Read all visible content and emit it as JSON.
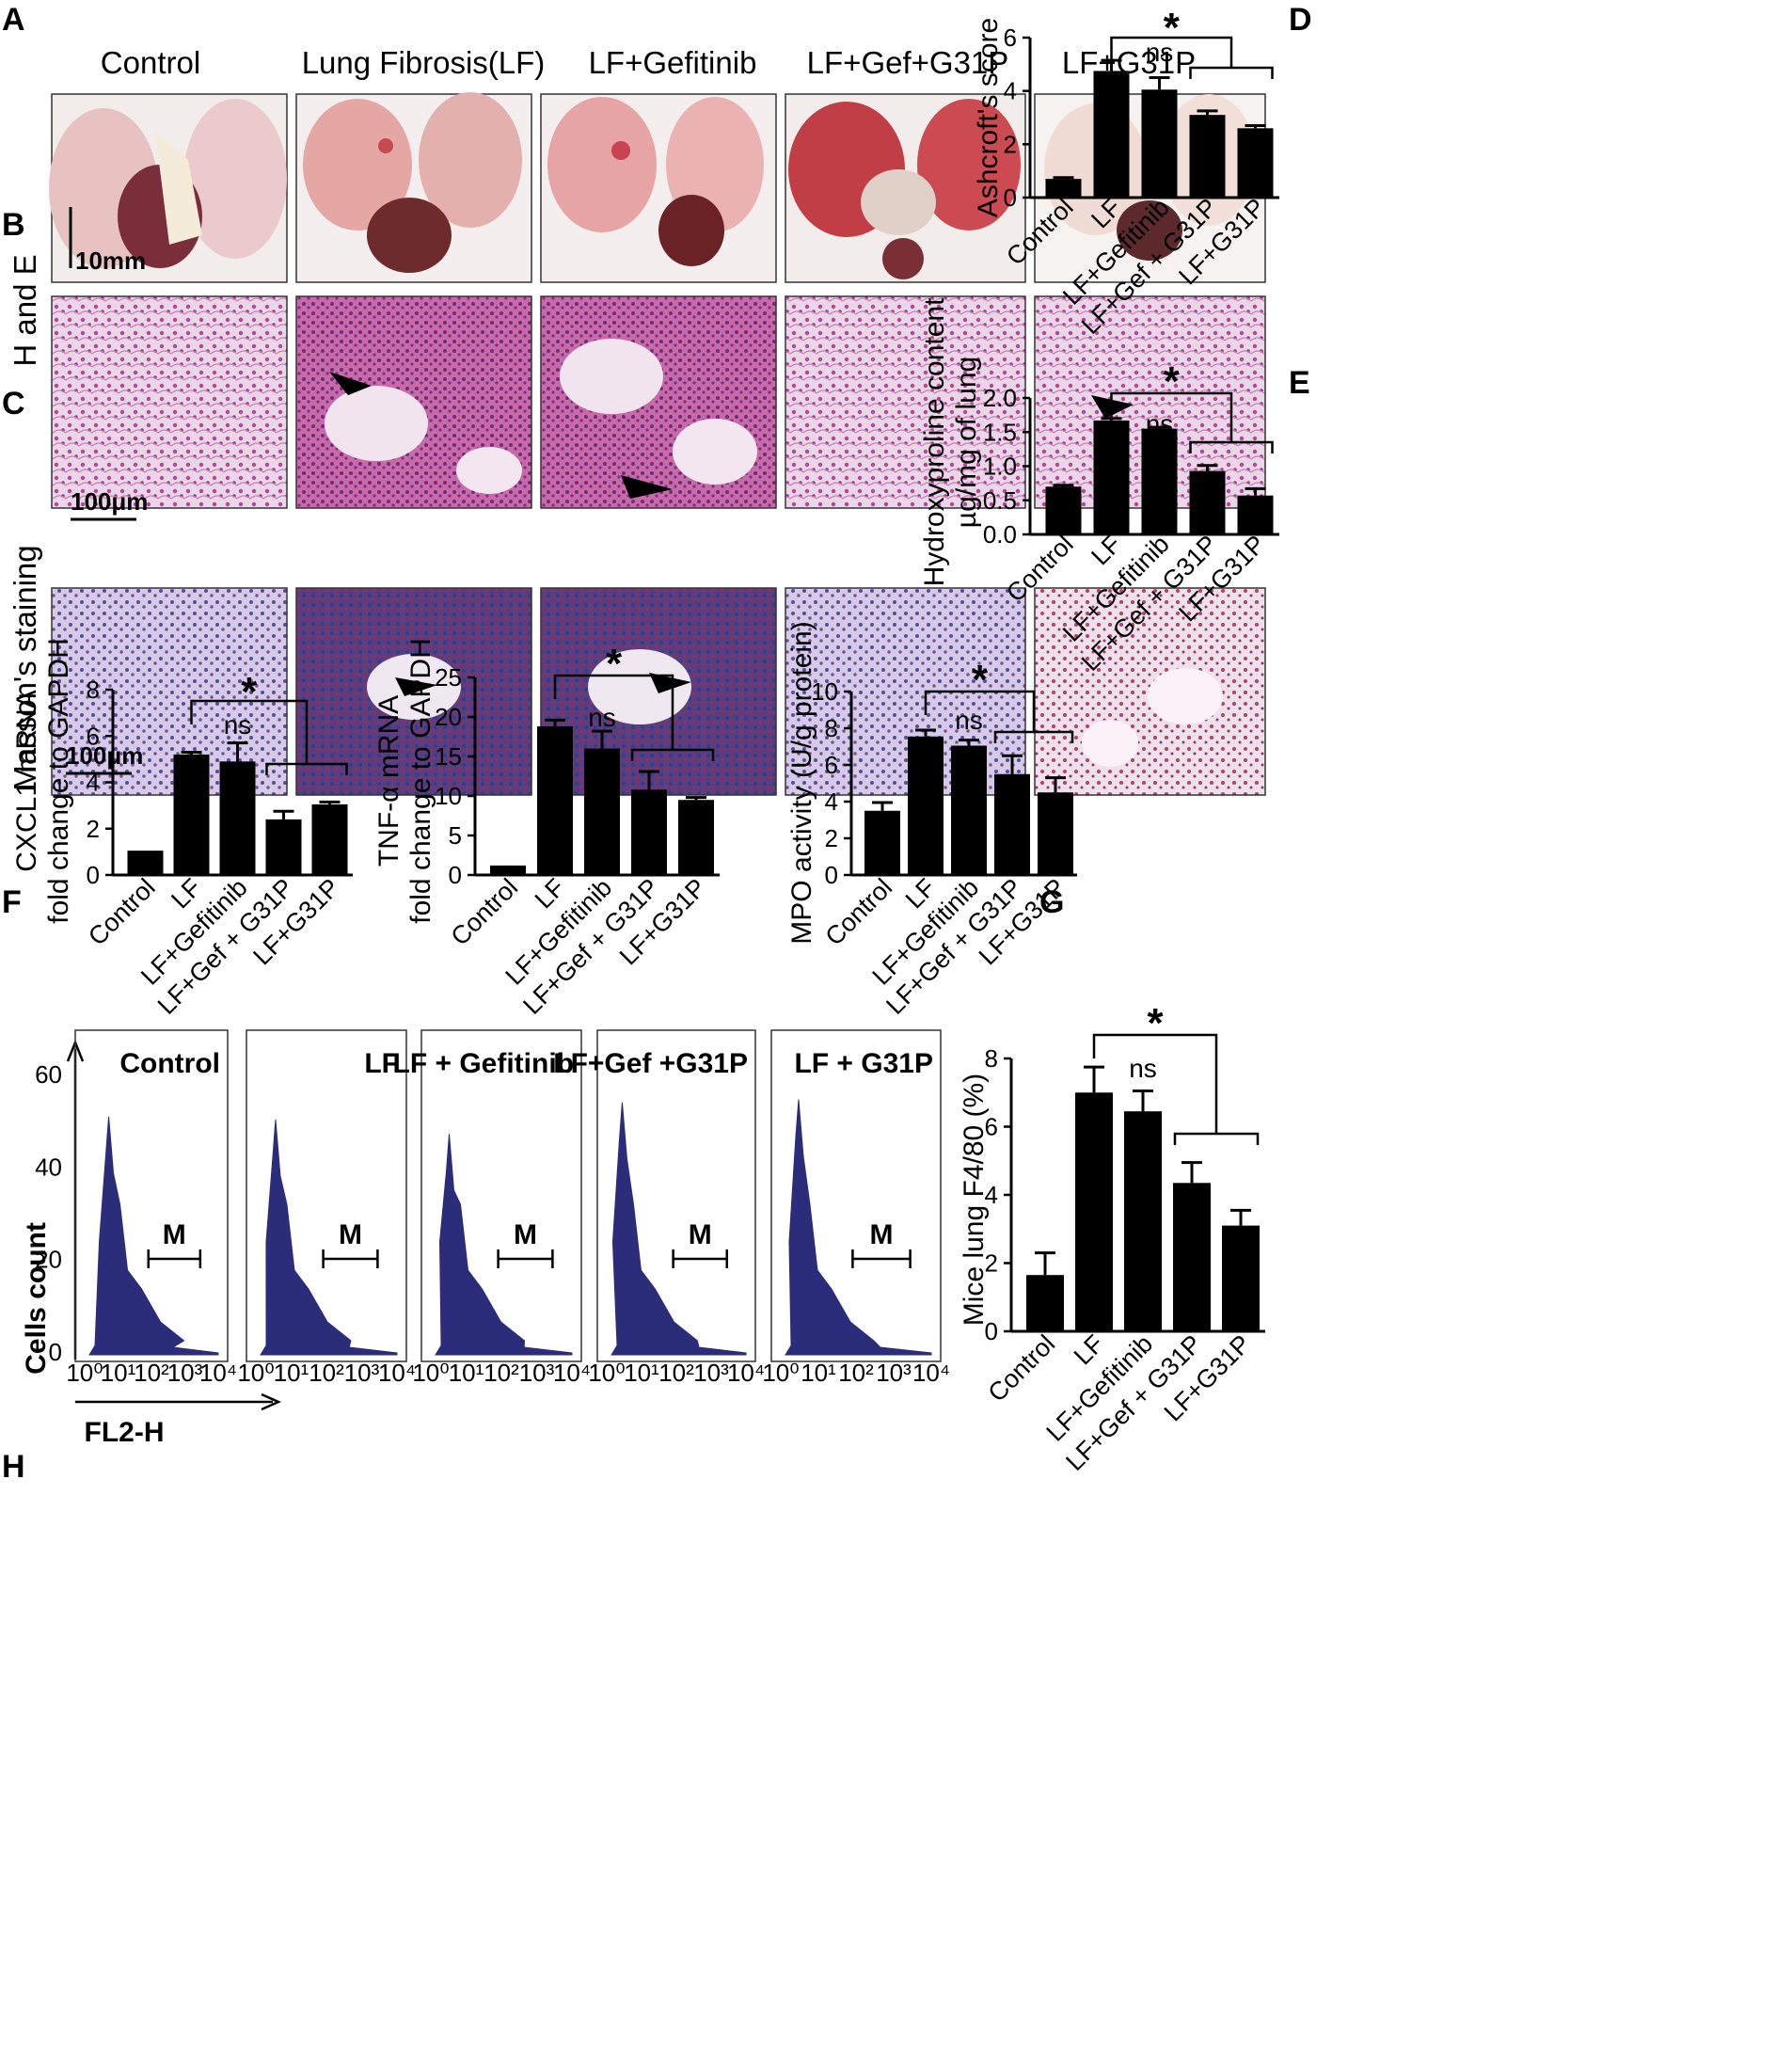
{
  "panels": {
    "A": "A",
    "B": "B",
    "C": "C",
    "D": "D",
    "E": "E",
    "F": "F",
    "G": "G",
    "H": "H"
  },
  "groups": [
    "Control",
    "Lung Fibrosis(LF)",
    "LF+Gefitinib",
    "LF+Gef+G31P",
    "LF+G31P"
  ],
  "row_labels": {
    "he": "H and E",
    "masson": "Masson's staining"
  },
  "scale_bars": {
    "gross": "10mm",
    "he": "100μm",
    "masson": "100μm"
  },
  "significance": {
    "star": "*",
    "ns": "ns"
  },
  "colors": {
    "bar": "#000000",
    "flow_fill": "#2b2c7a",
    "lung": "#e8b0ad",
    "he": "#c85a9c",
    "masson": "#7a5aa8"
  },
  "chart_data": [
    {
      "id": "D",
      "type": "bar",
      "categories": [
        "Control",
        "LF",
        "LF+Gefitinib",
        "LF+Gef + G31P",
        "LF+G31P"
      ],
      "values": [
        0.7,
        4.75,
        4.05,
        3.1,
        2.6
      ],
      "errors": [
        0.05,
        0.4,
        0.45,
        0.15,
        0.1
      ],
      "ylabel": "Ashcroft's score",
      "ylim": [
        0,
        6
      ],
      "yticks": [
        "0",
        "2",
        "4",
        "6"
      ]
    },
    {
      "id": "E",
      "type": "bar",
      "categories": [
        "Control",
        "LF",
        "LF+Gefitinib",
        "LF+Gef + G31P",
        "LF+G31P"
      ],
      "values": [
        0.7,
        1.67,
        1.55,
        0.93,
        0.57
      ],
      "errors": [
        0.02,
        0.03,
        0.02,
        0.08,
        0.1
      ],
      "ylabel": [
        "Hydroxyproline content",
        "µg/mg of lung"
      ],
      "ylim": [
        0,
        2
      ],
      "yticks": [
        "0.0",
        "0.5",
        "1.0",
        "1.5",
        "2.0"
      ]
    },
    {
      "id": "F1",
      "type": "bar",
      "categories": [
        "Control",
        "LF",
        "LF+Gefitinib",
        "LF+Gef + G31P",
        "LF+G31P"
      ],
      "values": [
        1.05,
        5.2,
        4.9,
        2.4,
        3.05
      ],
      "errors": [
        0.0,
        0.1,
        0.8,
        0.35,
        0.1
      ],
      "ylabel": [
        "CXCL1 mRNA",
        "fold change to GAPDH"
      ],
      "ylim": [
        0,
        8
      ],
      "yticks": [
        "0",
        "2",
        "4",
        "6",
        "8"
      ]
    },
    {
      "id": "F2",
      "type": "bar",
      "categories": [
        "Control",
        "LF",
        "LF+Gefitinib",
        "LF+Gef + G31P",
        "LF+G31P"
      ],
      "values": [
        1.2,
        18.8,
        16.0,
        10.8,
        9.5
      ],
      "errors": [
        0.0,
        0.8,
        2.2,
        2.3,
        0.3
      ],
      "ylabel": [
        "TNF-α mRNA",
        "fold change to GAPDH"
      ],
      "ylim": [
        0,
        25
      ],
      "yticks": [
        "0",
        "5",
        "10",
        "15",
        "20",
        "25"
      ]
    },
    {
      "id": "G",
      "type": "bar",
      "categories": [
        "Control",
        "LF",
        "LF+Gefitinib",
        "LF+Gef + G31P",
        "LF+G31P"
      ],
      "values": [
        3.5,
        7.55,
        7.05,
        5.5,
        4.5
      ],
      "errors": [
        0.45,
        0.35,
        0.3,
        1.0,
        0.8
      ],
      "ylabel": "MPO activity (U/g protein)",
      "ylim": [
        0,
        10
      ],
      "yticks": [
        "0",
        "2",
        "4",
        "6",
        "8",
        "10"
      ]
    },
    {
      "id": "H",
      "type": "bar",
      "categories": [
        "Control",
        "LF",
        "LF+Gefitinib",
        "LF+Gef + G31P",
        "LF+G31P"
      ],
      "values": [
        1.65,
        7.0,
        6.45,
        4.35,
        3.1
      ],
      "errors": [
        0.65,
        0.75,
        0.6,
        0.6,
        0.45
      ],
      "ylabel": "Mice lung F4/80 (%)",
      "ylim": [
        0,
        8
      ],
      "yticks": [
        "0",
        "2",
        "4",
        "6",
        "8"
      ]
    }
  ],
  "flow": {
    "titles": [
      "Control",
      "LF",
      "LF + Gefitinib",
      "LF+Gef +G31P",
      "LF + G31P"
    ],
    "ylabel": "Cells count",
    "xlabel": "FL2-H",
    "gate": "M",
    "yticks": [
      "0",
      "20",
      "40",
      "60"
    ],
    "xticks": [
      "10⁰",
      "10¹",
      "10²",
      "10³",
      "10⁴"
    ]
  }
}
